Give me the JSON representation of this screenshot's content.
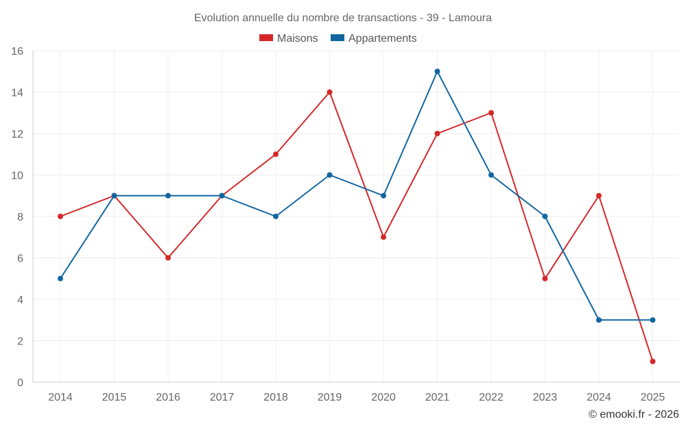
{
  "chart_data": {
    "type": "line",
    "title": "Evolution annuelle du nombre de transactions - 39 - Lamoura",
    "categories": [
      "2014",
      "2015",
      "2016",
      "2017",
      "2018",
      "2019",
      "2020",
      "2021",
      "2022",
      "2023",
      "2024",
      "2025"
    ],
    "series": [
      {
        "name": "Maisons",
        "color": "#d62728",
        "values": [
          8,
          9,
          6,
          9,
          11,
          14,
          7,
          12,
          13,
          5,
          9,
          1
        ]
      },
      {
        "name": "Appartements",
        "color": "#1066a0",
        "values": [
          5,
          9,
          9,
          9,
          8,
          10,
          9,
          15,
          10,
          8,
          3,
          3
        ]
      }
    ],
    "y_ticks": [
      "0",
      "2",
      "4",
      "6",
      "8",
      "10",
      "12",
      "14",
      "16"
    ],
    "ylim": [
      0,
      16
    ],
    "xlabel": "",
    "ylabel": "",
    "grid": true,
    "legend_position": "top-center"
  },
  "credit": "© emooki.fr - 2026"
}
